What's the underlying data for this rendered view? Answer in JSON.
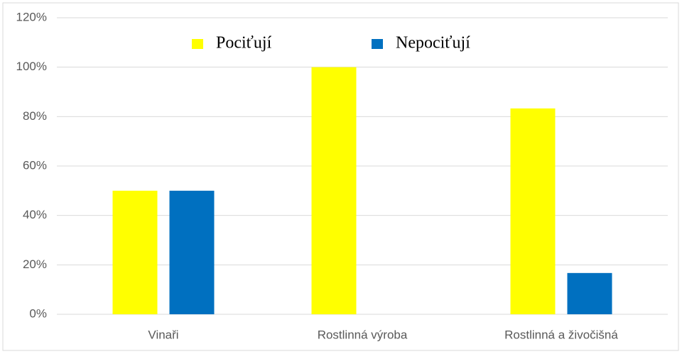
{
  "chart_data": {
    "type": "bar",
    "categories": [
      "Vinaři",
      "Rostlinná výroba",
      "Rostlinná a živočišná"
    ],
    "series": [
      {
        "name": "Pociťují",
        "color": "#ffff00",
        "values": [
          50,
          100,
          83.3
        ]
      },
      {
        "name": "Nepociťují",
        "color": "#0070c0",
        "values": [
          50,
          0,
          16.7
        ]
      }
    ],
    "ylim": [
      0,
      120
    ],
    "yticks": [
      {
        "value": 0,
        "label": "0%"
      },
      {
        "value": 20,
        "label": "20%"
      },
      {
        "value": 40,
        "label": "40%"
      },
      {
        "value": 60,
        "label": "60%"
      },
      {
        "value": 80,
        "label": "80%"
      },
      {
        "value": 100,
        "label": "100%"
      },
      {
        "value": 120,
        "label": "120%"
      }
    ],
    "grid": true,
    "legend": "top"
  }
}
